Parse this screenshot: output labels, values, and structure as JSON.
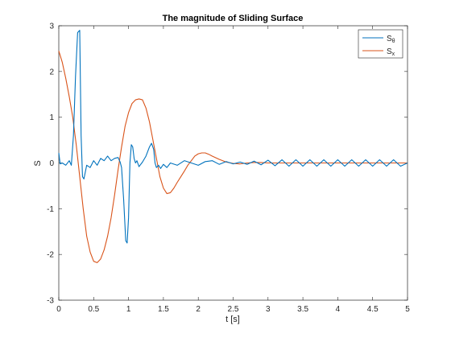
{
  "chart_data": {
    "type": "line",
    "title": "The magnitude of Sliding Surface",
    "xlabel": "t [s]",
    "ylabel": "S",
    "xlim": [
      0,
      5
    ],
    "ylim": [
      -3,
      3
    ],
    "xticks": [
      0,
      0.5,
      1,
      1.5,
      2,
      2.5,
      3,
      3.5,
      4,
      4.5,
      5
    ],
    "xtick_labels": [
      "0",
      "0.5",
      "1",
      "1.5",
      "2",
      "2.5",
      "3",
      "3.5",
      "4",
      "4.5",
      "5"
    ],
    "yticks": [
      -3,
      -2,
      -1,
      0,
      1,
      2,
      3
    ],
    "ytick_labels": [
      "-3",
      "-2",
      "-1",
      "0",
      "1",
      "2",
      "3"
    ],
    "grid": false,
    "legend_position": "top-right",
    "series": [
      {
        "name": "Sθ",
        "name_base": "S",
        "name_sub": "θ",
        "color": "#0072BD",
        "x": [
          0,
          0.02,
          0.05,
          0.1,
          0.15,
          0.18,
          0.21,
          0.24,
          0.27,
          0.3,
          0.32,
          0.34,
          0.36,
          0.4,
          0.45,
          0.5,
          0.55,
          0.6,
          0.65,
          0.7,
          0.75,
          0.8,
          0.85,
          0.88,
          0.9,
          0.93,
          0.96,
          0.98,
          1.0,
          1.02,
          1.04,
          1.06,
          1.08,
          1.1,
          1.12,
          1.15,
          1.2,
          1.25,
          1.3,
          1.33,
          1.36,
          1.38,
          1.4,
          1.43,
          1.46,
          1.5,
          1.55,
          1.6,
          1.7,
          1.8,
          1.9,
          2.0,
          2.1,
          2.2,
          2.3,
          2.4,
          2.5,
          2.6,
          2.7,
          2.8,
          2.9,
          3.0,
          3.1,
          3.2,
          3.3,
          3.4,
          3.5,
          3.6,
          3.7,
          3.8,
          3.9,
          4.0,
          4.1,
          4.2,
          4.3,
          4.4,
          4.5,
          4.6,
          4.7,
          4.8,
          4.9,
          5.0
        ],
        "y": [
          0.22,
          -0.02,
          0.0,
          -0.05,
          0.05,
          -0.05,
          0.6,
          1.9,
          2.85,
          2.9,
          0.6,
          -0.3,
          -0.35,
          -0.05,
          -0.1,
          0.05,
          -0.05,
          0.1,
          0.05,
          0.15,
          0.05,
          0.1,
          0.12,
          0.02,
          -0.1,
          -0.8,
          -1.7,
          -1.75,
          -1.2,
          0.0,
          0.4,
          0.35,
          0.1,
          0.0,
          0.05,
          -0.08,
          0.02,
          0.15,
          0.35,
          0.43,
          0.3,
          0.0,
          -0.1,
          -0.05,
          -0.12,
          -0.03,
          -0.1,
          0.0,
          -0.05,
          0.05,
          0.0,
          -0.05,
          0.03,
          0.05,
          -0.03,
          0.03,
          -0.02,
          0.02,
          -0.03,
          0.04,
          -0.04,
          0.06,
          -0.06,
          0.07,
          -0.07,
          0.07,
          -0.07,
          0.07,
          -0.07,
          0.07,
          -0.07,
          0.07,
          -0.07,
          0.07,
          -0.07,
          0.07,
          -0.07,
          0.07,
          -0.07,
          0.07,
          -0.07,
          0.0
        ]
      },
      {
        "name": "Sx",
        "name_base": "S",
        "name_sub": "x",
        "color": "#D95319",
        "x": [
          0,
          0.05,
          0.1,
          0.15,
          0.2,
          0.25,
          0.3,
          0.35,
          0.4,
          0.45,
          0.5,
          0.55,
          0.6,
          0.65,
          0.7,
          0.75,
          0.8,
          0.85,
          0.9,
          0.95,
          1.0,
          1.05,
          1.1,
          1.15,
          1.2,
          1.25,
          1.3,
          1.35,
          1.4,
          1.45,
          1.5,
          1.55,
          1.6,
          1.65,
          1.7,
          1.75,
          1.8,
          1.85,
          1.9,
          1.95,
          2.0,
          2.05,
          2.1,
          2.15,
          2.2,
          2.3,
          2.4,
          2.5,
          2.6,
          2.7,
          2.8,
          2.9,
          3.0,
          3.5,
          4.0,
          4.5,
          5.0
        ],
        "y": [
          2.45,
          2.2,
          1.85,
          1.45,
          1.0,
          0.4,
          -0.3,
          -1.0,
          -1.6,
          -1.95,
          -2.15,
          -2.18,
          -2.1,
          -1.9,
          -1.6,
          -1.2,
          -0.7,
          -0.15,
          0.35,
          0.8,
          1.1,
          1.3,
          1.38,
          1.4,
          1.38,
          1.2,
          0.9,
          0.5,
          0.1,
          -0.3,
          -0.55,
          -0.67,
          -0.65,
          -0.55,
          -0.42,
          -0.3,
          -0.18,
          -0.05,
          0.05,
          0.15,
          0.2,
          0.22,
          0.22,
          0.19,
          0.15,
          0.08,
          0.02,
          -0.01,
          -0.02,
          0.0,
          0.01,
          0.01,
          0.0,
          0.0,
          0.0,
          0.0,
          0.0
        ]
      }
    ]
  }
}
